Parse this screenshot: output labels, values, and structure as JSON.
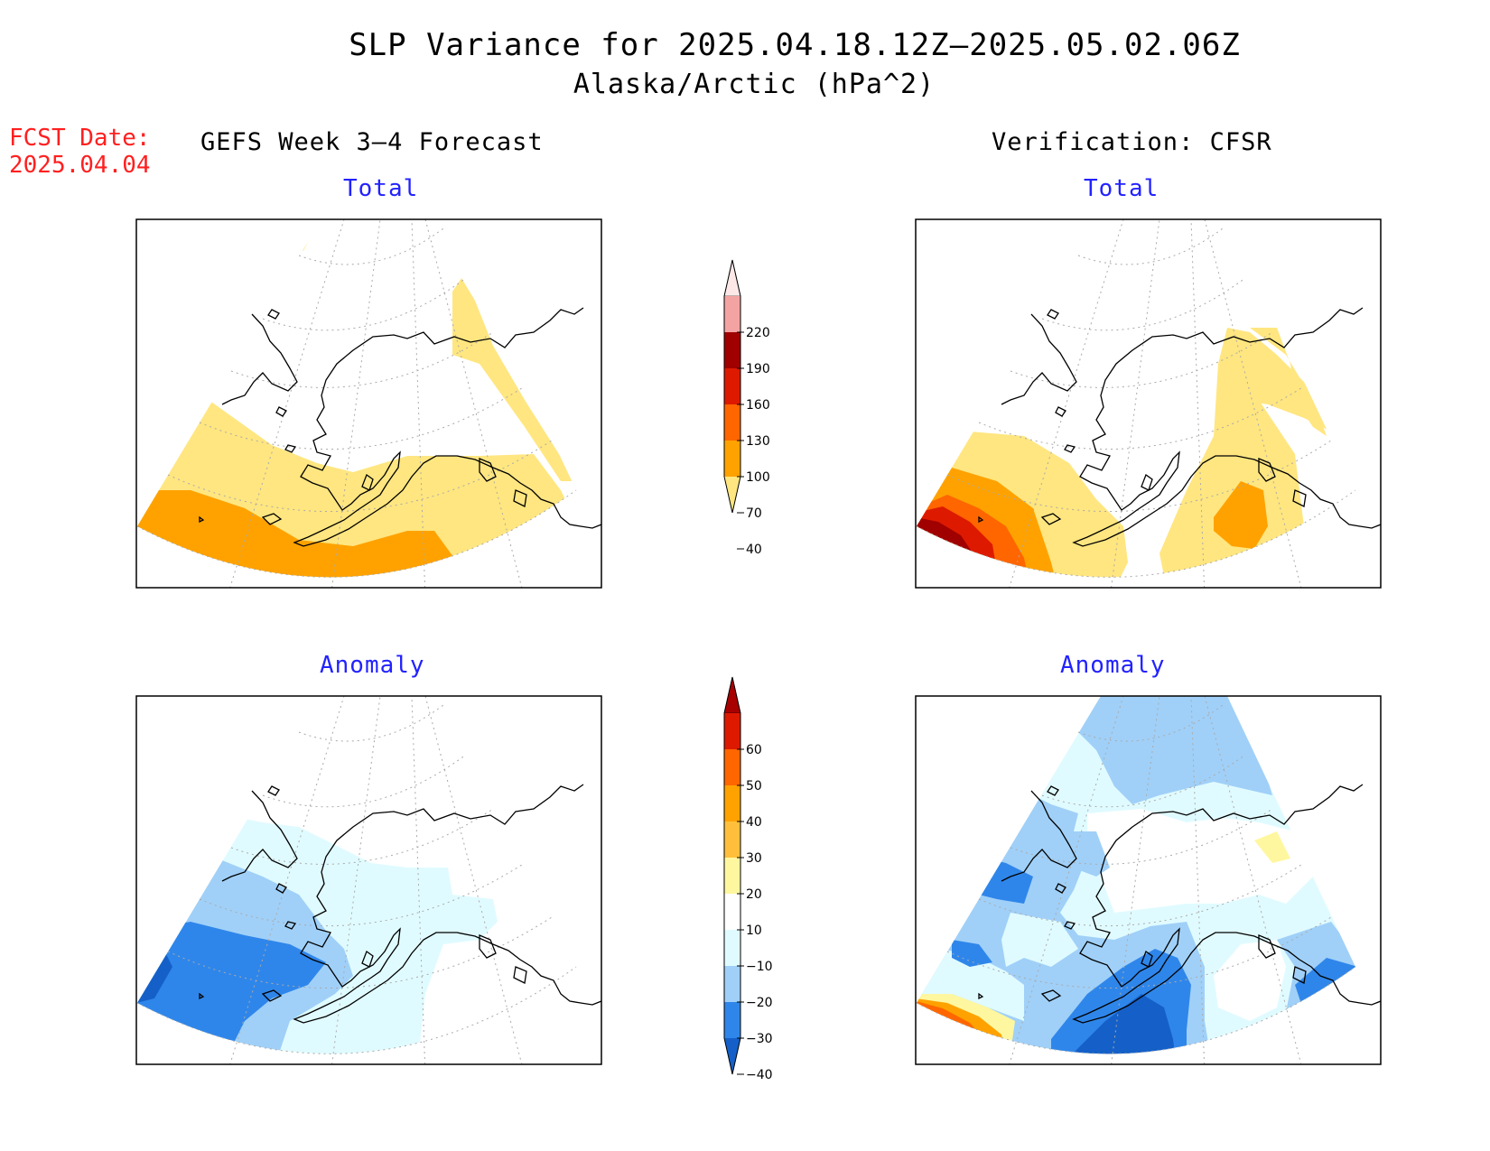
{
  "header": {
    "title": "SLP Variance for 2025.04.18.12Z–2025.05.02.06Z",
    "subtitle": "Alaska/Arctic (hPa^2)",
    "fcst_label": "FCST Date:",
    "fcst_date": "2025.04.04"
  },
  "columns": {
    "left": "GEFS Week 3–4 Forecast",
    "right": "Verification: CFSR"
  },
  "panels": {
    "top_left": "Total",
    "top_right": "Total",
    "bottom_left": "Anomaly",
    "bottom_right": "Anomaly"
  },
  "colorbars": {
    "total": {
      "labels": [
        "220",
        "190",
        "160",
        "130",
        "100",
        "70",
        "40"
      ],
      "colors": [
        "#fde8e8",
        "#f4a3a3",
        "#a00000",
        "#dd1a00",
        "#ff6600",
        "#ffa200",
        "#ffe680"
      ]
    },
    "anomaly": {
      "labels": [
        "60",
        "50",
        "40",
        "30",
        "20",
        "10",
        "−10",
        "−20",
        "−30",
        "−40"
      ],
      "colors": [
        "#a80000",
        "#dd1a00",
        "#ff6600",
        "#ffa200",
        "#ffbf3c",
        "#fff7a0",
        "#ffffff",
        "#e0fbff",
        "#a0d0f8",
        "#2f86ea",
        "#1460c8"
      ]
    }
  },
  "map_region": "Alaska/Arctic"
}
